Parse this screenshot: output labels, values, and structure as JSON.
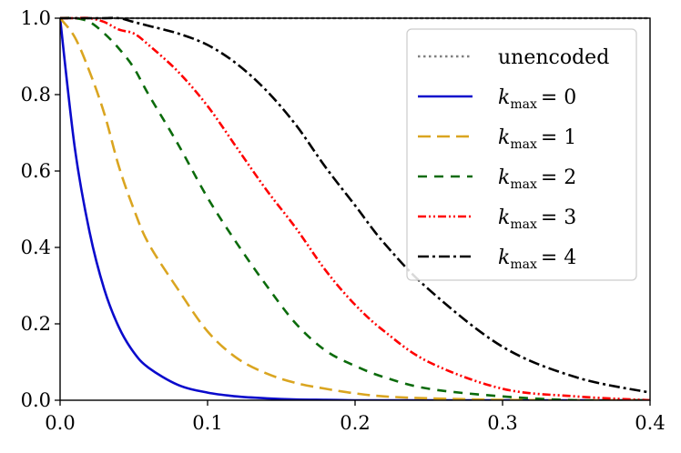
{
  "chart_data": {
    "type": "line",
    "title": "",
    "xlabel": "",
    "ylabel": "",
    "xlim": [
      0.0,
      0.4
    ],
    "ylim": [
      0.0,
      1.0
    ],
    "xticks": [
      "0.0",
      "0.1",
      "0.2",
      "0.3",
      "0.4"
    ],
    "yticks": [
      "0.0",
      "0.2",
      "0.4",
      "0.6",
      "0.8",
      "1.0"
    ],
    "grid": false,
    "legend_position": "top-right",
    "x": [
      0.0,
      0.01,
      0.02,
      0.03,
      0.04,
      0.05,
      0.06,
      0.08,
      0.1,
      0.12,
      0.14,
      0.16,
      0.18,
      0.2,
      0.22,
      0.25,
      0.3,
      0.35,
      0.4
    ],
    "series": [
      {
        "name": "unencoded",
        "legend_text": "unencoded",
        "color": "#808080",
        "dash": "dotted",
        "values": [
          1.0,
          1.0,
          1.0,
          1.0,
          1.0,
          1.0,
          1.0,
          1.0,
          1.0,
          1.0,
          1.0,
          1.0,
          1.0,
          1.0,
          1.0,
          1.0,
          1.0,
          1.0,
          1.0
        ]
      },
      {
        "name": "k_max = 0",
        "legend_var": "k",
        "legend_sub": "max",
        "legend_rhs": "= 0",
        "color": "#0a0acc",
        "dash": "solid",
        "values": [
          1.0,
          0.66,
          0.44,
          0.29,
          0.19,
          0.125,
          0.085,
          0.04,
          0.02,
          0.01,
          0.005,
          0.002,
          0.001,
          0.0,
          0.0,
          0.0,
          0.0,
          0.0,
          0.0
        ]
      },
      {
        "name": "k_max = 1",
        "legend_var": "k",
        "legend_sub": "max",
        "legend_rhs": "= 1",
        "color": "#daa520",
        "dash": "long-dash",
        "values": [
          1.0,
          0.95,
          0.86,
          0.75,
          0.61,
          0.5,
          0.41,
          0.29,
          0.18,
          0.11,
          0.07,
          0.045,
          0.03,
          0.018,
          0.01,
          0.005,
          0.001,
          0.0,
          0.0
        ]
      },
      {
        "name": "k_max = 2",
        "legend_var": "k",
        "legend_sub": "max",
        "legend_rhs": "= 2",
        "color": "#0b6b0b",
        "dash": "dashed",
        "values": [
          1.0,
          1.0,
          0.99,
          0.96,
          0.92,
          0.87,
          0.8,
          0.67,
          0.53,
          0.41,
          0.3,
          0.2,
          0.13,
          0.09,
          0.06,
          0.03,
          0.01,
          0.0,
          0.0
        ]
      },
      {
        "name": "k_max = 3",
        "legend_var": "k",
        "legend_sub": "max",
        "legend_rhs": "= 3",
        "color": "#ff0000",
        "dash": "dash-dot-dot",
        "values": [
          1.0,
          1.0,
          1.0,
          0.99,
          0.97,
          0.96,
          0.93,
          0.86,
          0.77,
          0.66,
          0.55,
          0.45,
          0.34,
          0.25,
          0.18,
          0.1,
          0.03,
          0.01,
          0.0
        ]
      },
      {
        "name": "k_max = 4",
        "legend_var": "k",
        "legend_sub": "max",
        "legend_rhs": "= 4",
        "color": "#000000",
        "dash": "dash-dot",
        "values": [
          1.0,
          1.0,
          1.0,
          1.0,
          1.0,
          0.99,
          0.98,
          0.96,
          0.93,
          0.88,
          0.81,
          0.72,
          0.61,
          0.51,
          0.41,
          0.29,
          0.14,
          0.06,
          0.02
        ]
      }
    ]
  }
}
